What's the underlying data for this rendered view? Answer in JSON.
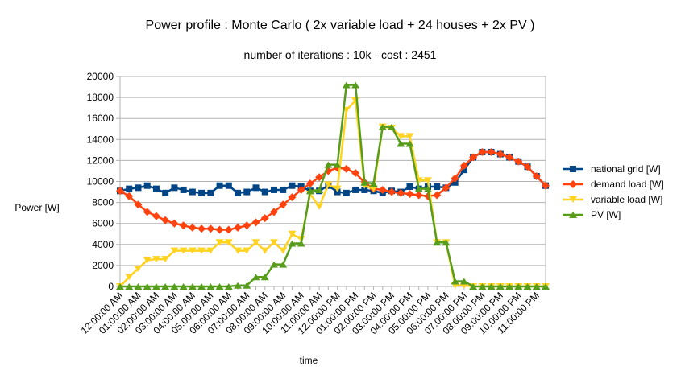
{
  "chart_data": {
    "type": "line",
    "title": "Power profile : Monte Carlo ( 2x variable load + 24 houses + 2x PV )",
    "subtitle": "number of iterations : 10k - cost : 2451",
    "y_label": "Power [W]",
    "x_label": "time",
    "categories": [
      "12:00:00 AM",
      null,
      "01:00:00 AM",
      null,
      "02:00:00 AM",
      null,
      "03:00:00 AM",
      null,
      "04:00:00 AM",
      null,
      "05:00:00 AM",
      null,
      "06:00:00 AM",
      null,
      "07:00:00 AM",
      null,
      "08:00:00 AM",
      null,
      "09:00:00 AM",
      null,
      "10:00:00 AM",
      null,
      "11:00:00 AM",
      null,
      "12:00:00 PM",
      null,
      "01:00:00 PM",
      null,
      "02:00:00 PM",
      null,
      "03:00:00 PM",
      null,
      "04:00:00 PM",
      null,
      "05:00:00 PM",
      null,
      "06:00:00 PM",
      null,
      "07:00:00 PM",
      null,
      "08:00:00 PM",
      null,
      "09:00:00 PM",
      null,
      "10:00:00 PM",
      null,
      "11:00:00 PM",
      null
    ],
    "series": [
      {
        "name": "national grid [W]",
        "color": "#004586",
        "marker": "square",
        "values": [
          9100,
          9300,
          9400,
          9600,
          9300,
          8900,
          9400,
          9200,
          9000,
          8900,
          8900,
          9600,
          9600,
          8900,
          9000,
          9400,
          9000,
          9200,
          9200,
          9600,
          9500,
          9100,
          9100,
          9600,
          9000,
          8900,
          9200,
          9200,
          9100,
          8900,
          9100,
          9000,
          9500,
          9300,
          9500,
          9500,
          9400,
          9900,
          11100,
          12300,
          12800,
          12800,
          12600,
          12300,
          11900,
          11400,
          10500,
          9600
        ]
      },
      {
        "name": "demand load [W]",
        "color": "#ff420e",
        "marker": "diamond",
        "values": [
          9100,
          8600,
          7800,
          7100,
          6700,
          6300,
          6000,
          5800,
          5600,
          5500,
          5500,
          5400,
          5400,
          5600,
          5800,
          6100,
          6500,
          7100,
          7800,
          8500,
          9200,
          9800,
          10400,
          11000,
          11300,
          11200,
          10800,
          9900,
          9300,
          9200,
          9000,
          8900,
          8800,
          8700,
          8600,
          8700,
          9400,
          10300,
          11500,
          12300,
          12800,
          12800,
          12600,
          12300,
          11900,
          11400,
          10500,
          9600
        ]
      },
      {
        "name": "variable load [W]",
        "color": "#ffd320",
        "marker": "triangle-down",
        "values": [
          0,
          900,
          1700,
          2500,
          2600,
          2600,
          3400,
          3400,
          3400,
          3400,
          3400,
          4200,
          4200,
          3400,
          3400,
          4200,
          3400,
          4200,
          3400,
          5000,
          4500,
          8800,
          7600,
          9700,
          9300,
          16800,
          17700,
          9600,
          9300,
          15200,
          15100,
          14300,
          14300,
          10100,
          10100,
          4200,
          4200,
          100,
          100,
          0,
          0,
          0,
          0,
          0,
          0,
          0,
          0,
          0
        ]
      },
      {
        "name": "PV [W]",
        "color": "#579d1c",
        "marker": "triangle-up",
        "values": [
          0,
          0,
          0,
          0,
          0,
          0,
          0,
          0,
          0,
          0,
          0,
          0,
          0,
          100,
          100,
          900,
          900,
          2100,
          2100,
          4100,
          4100,
          9100,
          9200,
          11600,
          11600,
          19200,
          19200,
          9900,
          9800,
          15200,
          15200,
          13600,
          13600,
          9300,
          9300,
          4200,
          4200,
          500,
          500,
          0,
          0,
          0,
          0,
          0,
          0,
          0,
          0,
          0
        ]
      }
    ],
    "ylim": [
      0,
      20000
    ],
    "yticks": [
      0,
      2000,
      4000,
      6000,
      8000,
      10000,
      12000,
      14000,
      16000,
      18000,
      20000
    ],
    "grid": true,
    "legend": "right"
  }
}
